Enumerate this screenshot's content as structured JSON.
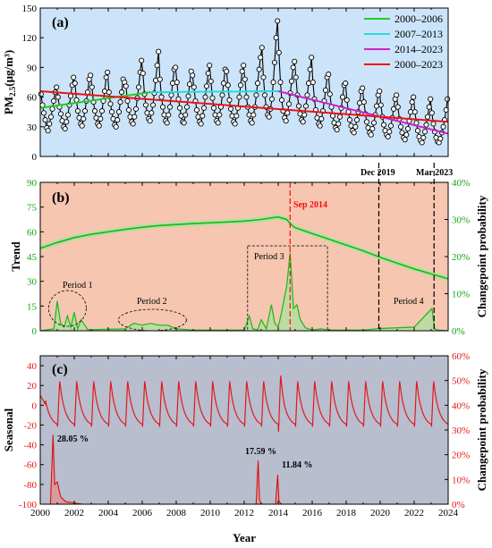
{
  "chart_data": [
    {
      "type": "line",
      "panel": "(a)",
      "ylabel": "PM2.5(μg/m³)",
      "ylabel_main": "PM",
      "ylabel_sub": "2.5",
      "ylabel_unit": "(μg/m³)",
      "xlim": [
        2000,
        2024
      ],
      "ylim": [
        0,
        150
      ],
      "yticks": [
        0,
        30,
        60,
        90,
        120,
        150
      ],
      "background": "#cbe4f9",
      "legend_position": "top-right",
      "legend": [
        {
          "name": "2000–2006",
          "color": "#22cc22"
        },
        {
          "name": "2007–2013",
          "color": "#22dddd"
        },
        {
          "name": "2014–2023",
          "color": "#cc22cc"
        },
        {
          "name": "2000–2023",
          "color": "#ee1111"
        }
      ],
      "series": [
        {
          "name": "monthly PM2.5",
          "color": "#000000",
          "marker": "circle",
          "x": [
            2000.04,
            2000.13,
            2000.21,
            2000.29,
            2000.38,
            2000.46,
            2000.54,
            2000.63,
            2000.71,
            2000.79,
            2000.88,
            2000.96,
            2001.04,
            2001.13,
            2001.21,
            2001.29,
            2001.38,
            2001.46,
            2001.54,
            2001.63,
            2001.71,
            2001.79,
            2001.88,
            2001.96,
            2002.04,
            2002.13,
            2002.21,
            2002.29,
            2002.38,
            2002.46,
            2002.54,
            2002.63,
            2002.71,
            2002.79,
            2002.88,
            2002.96,
            2003.04,
            2003.13,
            2003.21,
            2003.29,
            2003.38,
            2003.46,
            2003.54,
            2003.63,
            2003.71,
            2003.79,
            2003.88,
            2003.96,
            2004.04,
            2004.13,
            2004.21,
            2004.29,
            2004.38,
            2004.46,
            2004.54,
            2004.63,
            2004.71,
            2004.79,
            2004.88,
            2004.96,
            2005.04,
            2005.13,
            2005.21,
            2005.29,
            2005.38,
            2005.46,
            2005.54,
            2005.63,
            2005.71,
            2005.79,
            2005.88,
            2005.96,
            2006.04,
            2006.13,
            2006.21,
            2006.29,
            2006.38,
            2006.46,
            2006.54,
            2006.63,
            2006.71,
            2006.79,
            2006.88,
            2006.96,
            2007.04,
            2007.13,
            2007.21,
            2007.29,
            2007.38,
            2007.46,
            2007.54,
            2007.63,
            2007.71,
            2007.79,
            2007.88,
            2007.96,
            2008.04,
            2008.13,
            2008.21,
            2008.29,
            2008.38,
            2008.46,
            2008.54,
            2008.63,
            2008.71,
            2008.79,
            2008.88,
            2008.96,
            2009.04,
            2009.13,
            2009.21,
            2009.29,
            2009.38,
            2009.46,
            2009.54,
            2009.63,
            2009.71,
            2009.79,
            2009.88,
            2009.96,
            2010.04,
            2010.13,
            2010.21,
            2010.29,
            2010.38,
            2010.46,
            2010.54,
            2010.63,
            2010.71,
            2010.79,
            2010.88,
            2010.96,
            2011.04,
            2011.13,
            2011.21,
            2011.29,
            2011.38,
            2011.46,
            2011.54,
            2011.63,
            2011.71,
            2011.79,
            2011.88,
            2011.96,
            2012.04,
            2012.13,
            2012.21,
            2012.29,
            2012.38,
            2012.46,
            2012.54,
            2012.63,
            2012.71,
            2012.79,
            2012.88,
            2012.96,
            2013.04,
            2013.13,
            2013.21,
            2013.29,
            2013.38,
            2013.46,
            2013.54,
            2013.63,
            2013.71,
            2013.79,
            2013.88,
            2013.96,
            2014.04,
            2014.13,
            2014.21,
            2014.29,
            2014.38,
            2014.46,
            2014.54,
            2014.63,
            2014.71,
            2014.79,
            2014.88,
            2014.96,
            2015.04,
            2015.13,
            2015.21,
            2015.29,
            2015.38,
            2015.46,
            2015.54,
            2015.63,
            2015.71,
            2015.79,
            2015.88,
            2015.96,
            2016.04,
            2016.13,
            2016.21,
            2016.29,
            2016.38,
            2016.46,
            2016.54,
            2016.63,
            2016.71,
            2016.79,
            2016.88,
            2016.96,
            2017.04,
            2017.13,
            2017.21,
            2017.29,
            2017.38,
            2017.46,
            2017.54,
            2017.63,
            2017.71,
            2017.79,
            2017.88,
            2017.96,
            2018.04,
            2018.13,
            2018.21,
            2018.29,
            2018.38,
            2018.46,
            2018.54,
            2018.63,
            2018.71,
            2018.79,
            2018.88,
            2018.96,
            2019.04,
            2019.13,
            2019.21,
            2019.29,
            2019.38,
            2019.46,
            2019.54,
            2019.63,
            2019.71,
            2019.79,
            2019.88,
            2019.96,
            2020.04,
            2020.13,
            2020.21,
            2020.29,
            2020.38,
            2020.46,
            2020.54,
            2020.63,
            2020.71,
            2020.79,
            2020.88,
            2020.96,
            2021.04,
            2021.13,
            2021.21,
            2021.29,
            2021.38,
            2021.46,
            2021.54,
            2021.63,
            2021.71,
            2021.79,
            2021.88,
            2021.96,
            2022.04,
            2022.13,
            2022.21,
            2022.29,
            2022.38,
            2022.46,
            2022.54,
            2022.63,
            2022.71,
            2022.79,
            2022.88,
            2022.96,
            2023.04,
            2023.13,
            2023.21,
            2023.29,
            2023.38,
            2023.46,
            2023.54,
            2023.63,
            2023.71,
            2023.79,
            2023.88,
            2023.96
          ],
          "y": [
            63,
            52,
            44,
            37,
            29,
            26,
            33,
            40,
            48,
            56,
            65,
            70,
            60,
            50,
            43,
            36,
            30,
            28,
            35,
            42,
            52,
            61,
            72,
            80,
            74,
            57,
            46,
            39,
            33,
            31,
            38,
            46,
            56,
            65,
            78,
            82,
            70,
            55,
            46,
            39,
            33,
            31,
            38,
            46,
            56,
            66,
            80,
            85,
            65,
            53,
            45,
            38,
            32,
            30,
            37,
            45,
            55,
            65,
            78,
            75,
            71,
            56,
            47,
            40,
            35,
            33,
            40,
            48,
            59,
            70,
            85,
            97,
            84,
            63,
            52,
            44,
            38,
            36,
            44,
            52,
            64,
            77,
            92,
            106,
            78,
            60,
            50,
            42,
            36,
            34,
            42,
            50,
            62,
            74,
            88,
            90,
            75,
            58,
            49,
            41,
            35,
            34,
            42,
            50,
            61,
            73,
            86,
            82,
            70,
            56,
            47,
            40,
            35,
            33,
            41,
            49,
            60,
            71,
            84,
            92,
            76,
            59,
            49,
            42,
            36,
            34,
            42,
            50,
            62,
            74,
            88,
            86,
            72,
            57,
            48,
            41,
            35,
            33,
            41,
            49,
            60,
            72,
            86,
            92,
            78,
            60,
            50,
            42,
            36,
            34,
            42,
            50,
            62,
            74,
            88,
            100,
            110,
            80,
            62,
            50,
            42,
            40,
            48,
            58,
            75,
            95,
            120,
            137,
            105,
            75,
            57,
            46,
            39,
            36,
            44,
            53,
            64,
            76,
            90,
            96,
            80,
            62,
            51,
            43,
            37,
            35,
            42,
            51,
            62,
            74,
            88,
            100,
            75,
            58,
            47,
            39,
            33,
            31,
            38,
            46,
            56,
            67,
            80,
            83,
            63,
            50,
            41,
            34,
            29,
            27,
            33,
            40,
            49,
            60,
            72,
            74,
            57,
            45,
            37,
            31,
            26,
            24,
            30,
            37,
            45,
            54,
            66,
            69,
            55,
            43,
            35,
            29,
            24,
            22,
            28,
            34,
            42,
            51,
            62,
            66,
            52,
            40,
            32,
            26,
            22,
            20,
            25,
            31,
            39,
            48,
            58,
            62,
            50,
            38,
            30,
            24,
            19,
            17,
            22,
            28,
            36,
            45,
            55,
            60,
            45,
            34,
            26,
            20,
            16,
            14,
            19,
            25,
            32,
            40,
            50,
            58,
            44,
            33,
            25,
            19,
            15,
            14,
            18,
            24,
            30,
            37,
            47,
            58
          ]
        },
        {
          "name": "2000–2006",
          "color": "#22cc22",
          "x": [
            2000,
            2006.5
          ],
          "y": [
            49,
            65
          ]
        },
        {
          "name": "2007–2013",
          "color": "#22dddd",
          "x": [
            2006.5,
            2014
          ],
          "y": [
            65,
            66
          ]
        },
        {
          "name": "2014–2023",
          "color": "#cc22cc",
          "x": [
            2014,
            2024
          ],
          "y": [
            66,
            23
          ]
        },
        {
          "name": "2000–2023",
          "color": "#ee1111",
          "x": [
            2000,
            2024
          ],
          "y": [
            66,
            35
          ]
        }
      ]
    },
    {
      "type": "line",
      "panel": "(b)",
      "ylabel": "Trend",
      "y2label": "Changepoint probability",
      "xlim": [
        2000,
        2024
      ],
      "ylim": [
        0,
        90
      ],
      "yticks": [
        0,
        15,
        30,
        45,
        60,
        75,
        90
      ],
      "y2lim": [
        0,
        40
      ],
      "y2ticks": [
        "0%",
        "10%",
        "20%",
        "30%",
        "40%"
      ],
      "background": "#f6c6b0",
      "trend": {
        "x": [
          2000,
          2001,
          2002,
          2003,
          2004,
          2005,
          2006,
          2007,
          2008,
          2009,
          2010,
          2011,
          2012,
          2013,
          2013.5,
          2014,
          2014.5,
          2014.75,
          2015,
          2016,
          2017,
          2018,
          2019,
          2020,
          2021,
          2022,
          2023,
          2024
        ],
        "y": [
          50,
          53.5,
          56.5,
          58.5,
          60,
          61.5,
          62.8,
          63.8,
          64.4,
          65,
          65.5,
          66,
          66.5,
          67.5,
          68.3,
          69,
          67.5,
          64.5,
          62.5,
          59,
          55.5,
          52,
          48.5,
          44.5,
          41,
          37.5,
          34.5,
          31.5
        ]
      },
      "changepoint": {
        "x": [
          2000,
          2000.8,
          2001,
          2001.2,
          2001.4,
          2001.6,
          2001.8,
          2002,
          2002.2,
          2002.4,
          2002.8,
          2005,
          2005.5,
          2006,
          2006.5,
          2007,
          2007.5,
          2008,
          2009,
          2012,
          2012.3,
          2012.5,
          2012.8,
          2013,
          2013.3,
          2013.6,
          2013.8,
          2014,
          2014.2,
          2014.5,
          2014.7,
          2014.9,
          2015.1,
          2015.3,
          2015.6,
          2016,
          2016.5,
          2017,
          2019,
          2020,
          2022,
          2023.05,
          2023.2,
          2023.4,
          2024
        ],
        "y": [
          0,
          0.5,
          8,
          2,
          1,
          4,
          1,
          5,
          0.5,
          3,
          0.3,
          0.5,
          2,
          1.5,
          2,
          1.5,
          1.5,
          0.5,
          0.2,
          0.2,
          4,
          0.5,
          0.3,
          3,
          0.5,
          7,
          2,
          1,
          5,
          12,
          21,
          6,
          7,
          3,
          0.8,
          0.2,
          0.5,
          0.2,
          0.2,
          0.6,
          1,
          6,
          0.5,
          0.2,
          0
        ]
      },
      "vlines": [
        {
          "x": 2014.7,
          "label": "Sep 2014",
          "color": "#ee1111"
        },
        {
          "x": 2019.92,
          "label": "Dec 2019",
          "color": "#000000"
        },
        {
          "x": 2023.17,
          "label": "Mar 2023",
          "color": "#000000"
        }
      ],
      "annotations": [
        "Period 1",
        "Period 2",
        "Period 3",
        "Period 4"
      ]
    },
    {
      "type": "line",
      "panel": "(c)",
      "ylabel": "Seasonal",
      "y2label": "Changepoint probability",
      "xlabel": "Year",
      "xlim": [
        2000,
        2024
      ],
      "ylim": [
        -100,
        50
      ],
      "yticks": [
        -100,
        -80,
        -60,
        -40,
        -20,
        0,
        20,
        40
      ],
      "y2lim": [
        0,
        60
      ],
      "y2ticks": [
        "0%",
        "10%",
        "20%",
        "30%",
        "40%",
        "50%",
        "60%"
      ],
      "xticks": [
        2000,
        2002,
        2004,
        2006,
        2008,
        2010,
        2012,
        2014,
        2016,
        2018,
        2020,
        2022,
        2024
      ],
      "background": "#b8bece",
      "seasonal_amplitude": {
        "min": -22,
        "max": 25,
        "peak_2014": 31
      },
      "changepoint": {
        "x": [
          2000,
          2000.6,
          2000.75,
          2000.85,
          2001,
          2001.2,
          2001.5,
          2002,
          2002.5,
          2012.7,
          2012.82,
          2012.9,
          2013.0,
          2013.85,
          2013.97,
          2014.05,
          2014.2,
          2024
        ],
        "y": [
          0,
          0,
          28.05,
          8,
          9,
          3,
          1,
          0.5,
          0,
          0,
          17.59,
          2,
          0,
          0,
          11.84,
          1,
          0,
          0
        ]
      },
      "annotations": [
        "28.05 %",
        "17.59 %",
        "11.84 %"
      ]
    }
  ]
}
